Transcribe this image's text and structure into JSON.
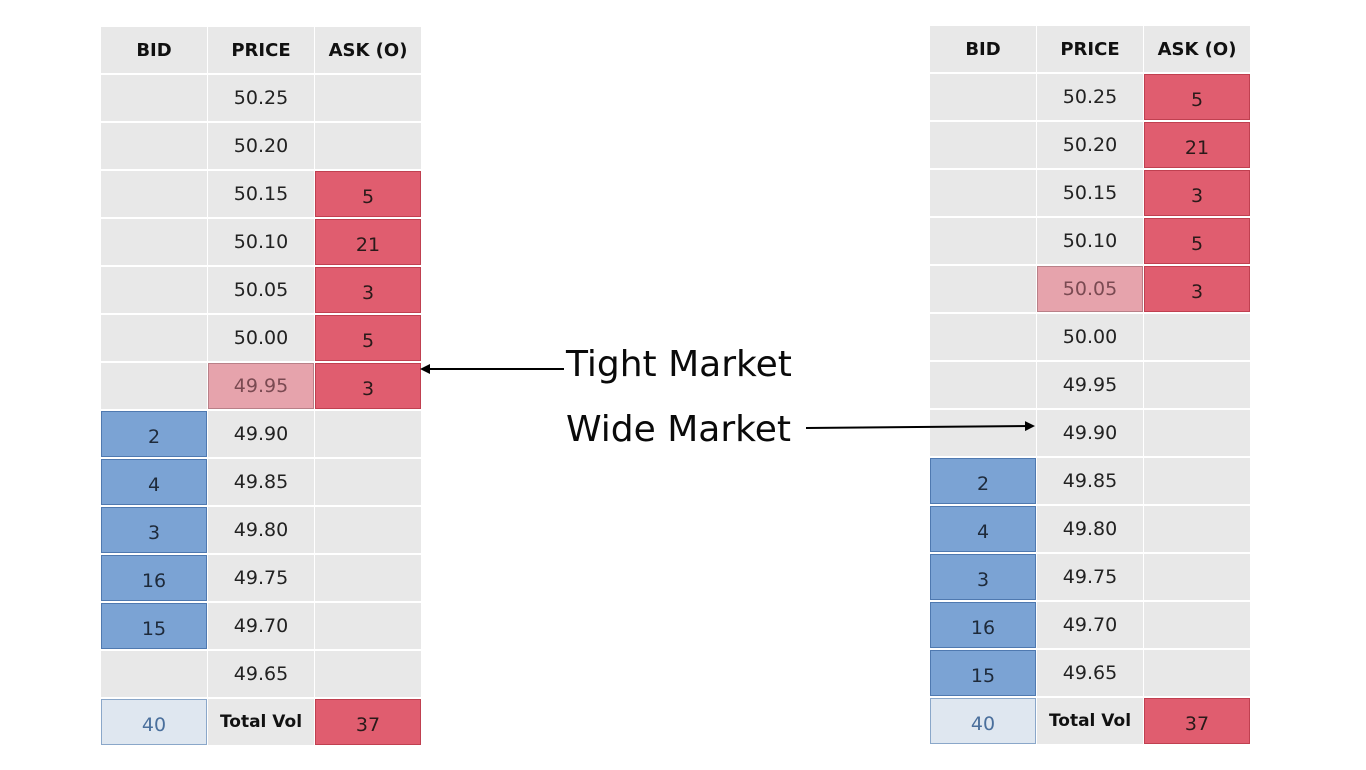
{
  "headers": [
    "BID",
    "PRICE",
    "ASK (O)"
  ],
  "total_label": "Total Vol",
  "left_book": {
    "rows": [
      {
        "price": "50.25",
        "bid": "",
        "ask": ""
      },
      {
        "price": "50.20",
        "bid": "",
        "ask": ""
      },
      {
        "price": "50.15",
        "bid": "",
        "ask": "5"
      },
      {
        "price": "50.10",
        "bid": "",
        "ask": "21"
      },
      {
        "price": "50.05",
        "bid": "",
        "ask": "3"
      },
      {
        "price": "50.00",
        "bid": "",
        "ask": "5"
      },
      {
        "price": "49.95",
        "bid": "",
        "ask": "3",
        "highlight": true
      },
      {
        "price": "49.90",
        "bid": "2",
        "ask": ""
      },
      {
        "price": "49.85",
        "bid": "4",
        "ask": ""
      },
      {
        "price": "49.80",
        "bid": "3",
        "ask": ""
      },
      {
        "price": "49.75",
        "bid": "16",
        "ask": ""
      },
      {
        "price": "49.70",
        "bid": "15",
        "ask": ""
      },
      {
        "price": "49.65",
        "bid": "",
        "ask": ""
      }
    ],
    "total_bid": "40",
    "total_ask": "37"
  },
  "right_book": {
    "rows": [
      {
        "price": "50.25",
        "bid": "",
        "ask": "5"
      },
      {
        "price": "50.20",
        "bid": "",
        "ask": "21"
      },
      {
        "price": "50.15",
        "bid": "",
        "ask": "3"
      },
      {
        "price": "50.10",
        "bid": "",
        "ask": "5"
      },
      {
        "price": "50.05",
        "bid": "",
        "ask": "3",
        "highlight": true
      },
      {
        "price": "50.00",
        "bid": "",
        "ask": ""
      },
      {
        "price": "49.95",
        "bid": "",
        "ask": ""
      },
      {
        "price": "49.90",
        "bid": "",
        "ask": ""
      },
      {
        "price": "49.85",
        "bid": "2",
        "ask": ""
      },
      {
        "price": "49.80",
        "bid": "4",
        "ask": ""
      },
      {
        "price": "49.75",
        "bid": "3",
        "ask": ""
      },
      {
        "price": "49.70",
        "bid": "16",
        "ask": ""
      },
      {
        "price": "49.65",
        "bid": "15",
        "ask": ""
      }
    ],
    "total_bid": "40",
    "total_ask": "37"
  },
  "annotations": {
    "tight": "Tight Market",
    "wide": "Wide Market"
  },
  "colors": {
    "bid": "#7ba3d4",
    "ask": "#e05d6f",
    "spread": "#e6a3ac",
    "cell": "#e8e8e8"
  }
}
